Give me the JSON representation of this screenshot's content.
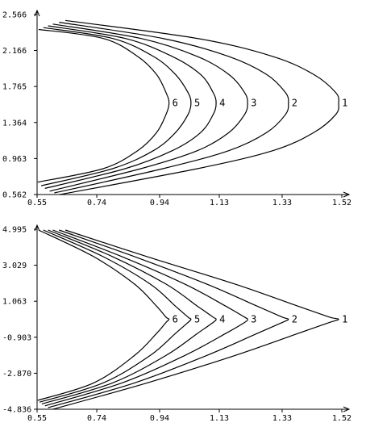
{
  "chart_data": [
    {
      "type": "line",
      "title": "",
      "xlabel": "",
      "ylabel": "",
      "xlim": [
        0.55,
        1.52
      ],
      "ylim": [
        0.562,
        2.566
      ],
      "x_ticks": [
        "0.55",
        "0.74",
        "0.94",
        "1.13",
        "1.33",
        "1.52"
      ],
      "y_ticks": [
        "0.562",
        "0.963",
        "1.364",
        "1.765",
        "2.166",
        "2.566"
      ],
      "grid": false,
      "series": [
        {
          "name": "1",
          "x": [
            0.64,
            1.06,
            1.3,
            1.43,
            1.5,
            1.51,
            1.5,
            1.43,
            1.3,
            1.06,
            0.62
          ],
          "y": [
            2.5,
            2.3,
            2.1,
            1.9,
            1.7,
            1.58,
            1.45,
            1.25,
            1.05,
            0.85,
            0.56
          ]
        },
        {
          "name": "2",
          "x": [
            0.62,
            0.95,
            1.16,
            1.28,
            1.34,
            1.35,
            1.34,
            1.28,
            1.16,
            0.95,
            0.605
          ],
          "y": [
            2.48,
            2.3,
            2.1,
            1.9,
            1.7,
            1.58,
            1.45,
            1.25,
            1.05,
            0.85,
            0.58
          ]
        },
        {
          "name": "3",
          "x": [
            0.6,
            0.88,
            1.06,
            1.16,
            1.21,
            1.22,
            1.21,
            1.16,
            1.06,
            0.88,
            0.59
          ],
          "y": [
            2.46,
            2.3,
            2.1,
            1.9,
            1.7,
            1.58,
            1.45,
            1.25,
            1.05,
            0.85,
            0.6
          ]
        },
        {
          "name": "4",
          "x": [
            0.585,
            0.83,
            0.98,
            1.07,
            1.11,
            1.12,
            1.11,
            1.07,
            0.98,
            0.83,
            0.575
          ],
          "y": [
            2.44,
            2.3,
            2.1,
            1.9,
            1.7,
            1.58,
            1.45,
            1.25,
            1.05,
            0.85,
            0.63
          ]
        },
        {
          "name": "5",
          "x": [
            0.57,
            0.79,
            0.92,
            0.99,
            1.03,
            1.04,
            1.03,
            0.99,
            0.92,
            0.79,
            0.563
          ],
          "y": [
            2.42,
            2.3,
            2.1,
            1.9,
            1.7,
            1.58,
            1.45,
            1.25,
            1.05,
            0.85,
            0.66
          ]
        },
        {
          "name": "6",
          "x": [
            0.555,
            0.76,
            0.87,
            0.93,
            0.96,
            0.97,
            0.96,
            0.93,
            0.87,
            0.76,
            0.552
          ],
          "y": [
            2.4,
            2.3,
            2.1,
            1.9,
            1.7,
            1.58,
            1.45,
            1.25,
            1.05,
            0.85,
            0.7
          ]
        }
      ]
    },
    {
      "type": "line",
      "title": "",
      "xlabel": "",
      "ylabel": "",
      "xlim": [
        0.55,
        1.52
      ],
      "ylim": [
        -4.836,
        4.995
      ],
      "x_ticks": [
        "0.55",
        "0.74",
        "0.94",
        "1.13",
        "1.33",
        "1.52"
      ],
      "y_ticks": [
        "-4.836",
        "-2.870",
        "-0.903",
        "1.063",
        "3.029",
        "4.995"
      ],
      "grid": false,
      "series": [
        {
          "name": "1",
          "x": [
            0.64,
            0.9,
            1.18,
            1.38,
            1.48,
            1.51,
            1.48,
            1.38,
            1.18,
            0.9,
            0.6
          ],
          "y": [
            4.95,
            3.5,
            2.0,
            0.8,
            0.2,
            0.08,
            -0.1,
            -0.7,
            -1.9,
            -3.4,
            -4.836
          ]
        },
        {
          "name": "2",
          "x": [
            0.62,
            0.86,
            1.09,
            1.25,
            1.33,
            1.35,
            1.33,
            1.25,
            1.09,
            0.86,
            0.585
          ],
          "y": [
            4.95,
            3.5,
            2.0,
            0.8,
            0.2,
            0.08,
            -0.1,
            -0.7,
            -1.9,
            -3.4,
            -4.75
          ]
        },
        {
          "name": "3",
          "x": [
            0.6,
            0.82,
            1.02,
            1.15,
            1.21,
            1.22,
            1.21,
            1.15,
            1.02,
            0.82,
            0.575
          ],
          "y": [
            4.95,
            3.5,
            2.0,
            0.8,
            0.2,
            0.08,
            -0.1,
            -0.7,
            -1.9,
            -3.4,
            -4.65
          ]
        },
        {
          "name": "4",
          "x": [
            0.585,
            0.79,
            0.96,
            1.06,
            1.11,
            1.12,
            1.11,
            1.06,
            0.96,
            0.79,
            0.565
          ],
          "y": [
            4.95,
            3.5,
            2.0,
            0.8,
            0.2,
            0.08,
            -0.1,
            -0.7,
            -1.9,
            -3.4,
            -4.55
          ]
        },
        {
          "name": "5",
          "x": [
            0.57,
            0.76,
            0.91,
            0.99,
            1.03,
            1.04,
            1.03,
            0.99,
            0.91,
            0.76,
            0.558
          ],
          "y": [
            4.95,
            3.5,
            2.0,
            0.8,
            0.2,
            0.08,
            -0.1,
            -0.7,
            -1.9,
            -3.4,
            -4.45
          ]
        },
        {
          "name": "6",
          "x": [
            0.555,
            0.73,
            0.86,
            0.93,
            0.96,
            0.97,
            0.96,
            0.93,
            0.86,
            0.73,
            0.552
          ],
          "y": [
            4.95,
            3.5,
            2.0,
            0.8,
            0.2,
            0.08,
            -0.1,
            -0.7,
            -1.9,
            -3.4,
            -4.35
          ]
        }
      ]
    }
  ]
}
